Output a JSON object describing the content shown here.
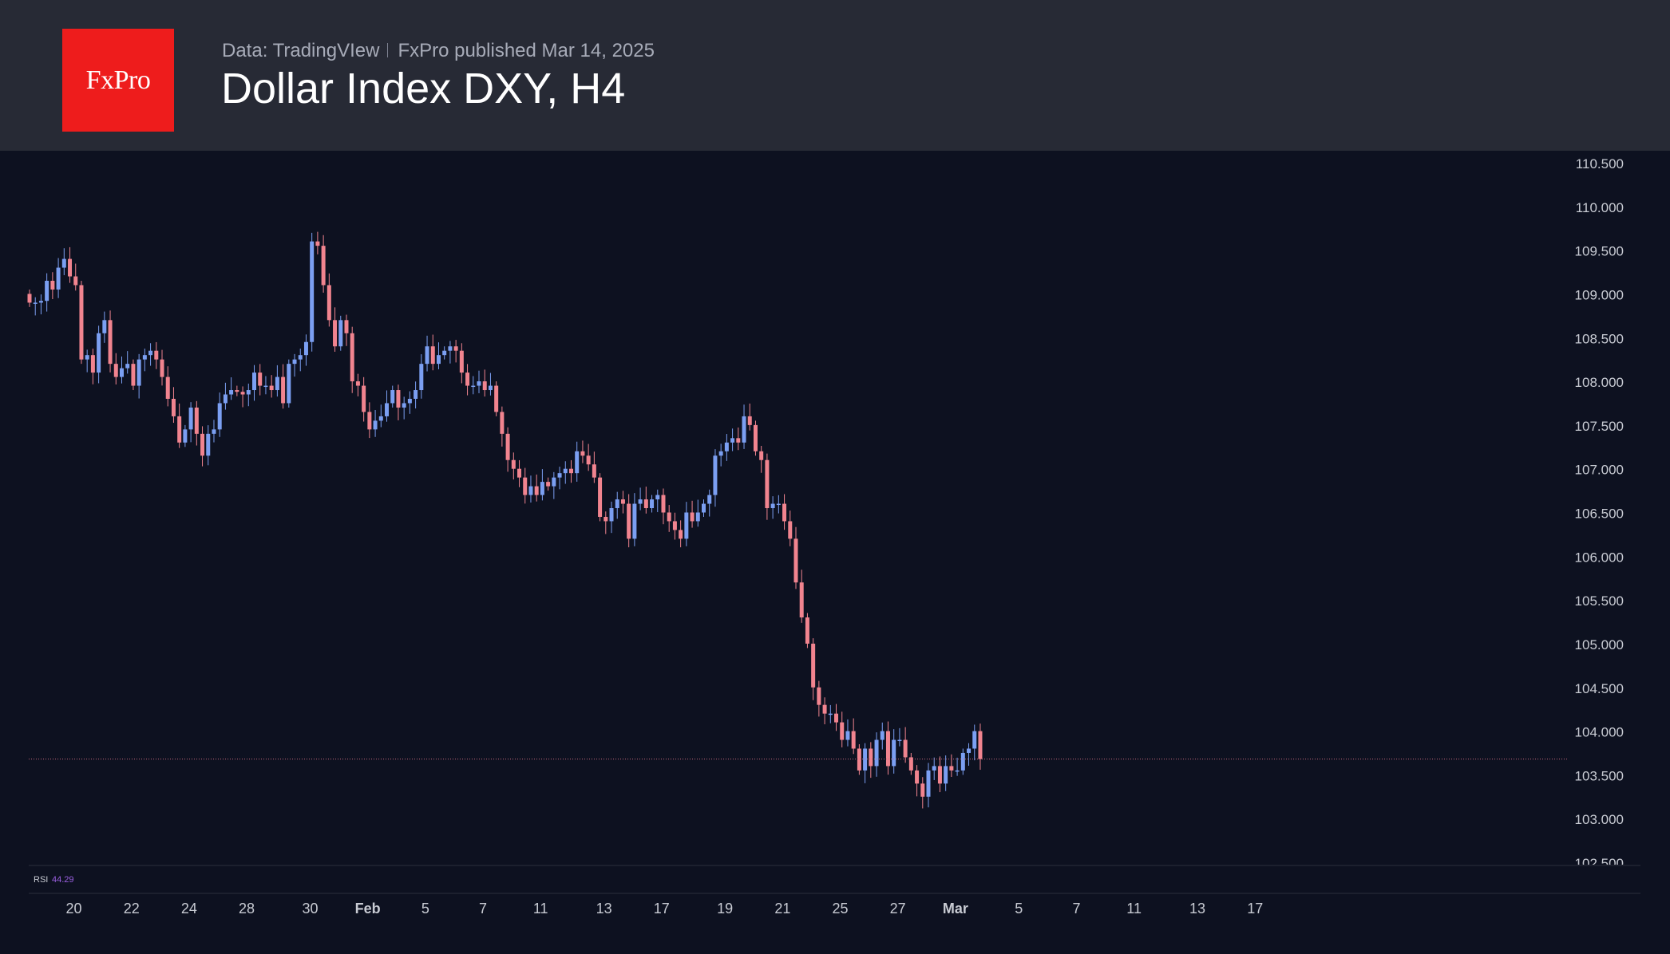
{
  "header": {
    "logo_text": "FxPro",
    "data_source": "Data: TradingVIew",
    "published": "FxPro published Mar 14, 2025",
    "title": "Dollar Index DXY, H4"
  },
  "colors": {
    "header_bg": "#272a35",
    "chart_bg": "#0d1120",
    "logo_bg": "#ee1c1c",
    "bull": "#7b9ff2",
    "bear": "#f1848f",
    "axis_text": "#c8cbd3",
    "rsi_label": "#c8cbd3",
    "rsi_value": "#9a5fe0",
    "price_line": "#c8687c"
  },
  "indicator": {
    "label": "RSI",
    "value": "44.29"
  },
  "chart_data": {
    "type": "candlestick",
    "title": "Dollar Index DXY, H4",
    "ylim": [
      102.5,
      110.5
    ],
    "last_price": 103.68,
    "y_ticks": [
      "110.500",
      "110.000",
      "109.500",
      "109.000",
      "108.500",
      "108.000",
      "107.500",
      "107.000",
      "106.500",
      "106.000",
      "105.500",
      "105.000",
      "104.500",
      "104.000",
      "103.500",
      "103.000",
      "102.500"
    ],
    "x_ticks": [
      {
        "label": "20",
        "i": 7
      },
      {
        "label": "22",
        "i": 17
      },
      {
        "label": "24",
        "i": 27
      },
      {
        "label": "28",
        "i": 37
      },
      {
        "label": "30",
        "i": 48
      },
      {
        "label": "Feb",
        "i": 58
      },
      {
        "label": "5",
        "i": 68
      },
      {
        "label": "7",
        "i": 78
      },
      {
        "label": "11",
        "i": 88
      },
      {
        "label": "13",
        "i": 99
      },
      {
        "label": "17",
        "i": 109
      },
      {
        "label": "19",
        "i": 120
      },
      {
        "label": "21",
        "i": 130
      },
      {
        "label": "25",
        "i": 140
      },
      {
        "label": "27",
        "i": 150
      },
      {
        "label": "Mar",
        "i": 160
      },
      {
        "label": "5",
        "i": 171
      },
      {
        "label": "7",
        "i": 181
      },
      {
        "label": "11",
        "i": 191
      },
      {
        "label": "13",
        "i": 202
      },
      {
        "label": "17",
        "i": 212
      }
    ],
    "close": [
      108.9,
      108.9,
      108.92,
      109.15,
      109.05,
      109.3,
      109.4,
      109.2,
      109.1,
      108.25,
      108.3,
      108.1,
      108.55,
      108.7,
      108.2,
      108.05,
      108.15,
      108.2,
      107.95,
      108.25,
      108.3,
      108.35,
      108.25,
      108.05,
      107.8,
      107.6,
      107.3,
      107.45,
      107.7,
      107.4,
      107.15,
      107.4,
      107.45,
      107.75,
      107.85,
      107.9,
      107.88,
      107.85,
      107.9,
      108.1,
      107.95,
      107.95,
      107.9,
      108.05,
      107.75,
      108.2,
      108.25,
      108.3,
      108.45,
      109.6,
      109.55,
      109.1,
      108.7,
      108.4,
      108.7,
      108.55,
      108.0,
      107.95,
      107.65,
      107.45,
      107.55,
      107.6,
      107.75,
      107.9,
      107.7,
      107.75,
      107.8,
      107.9,
      108.2,
      108.4,
      108.2,
      108.3,
      108.35,
      108.4,
      108.35,
      108.1,
      107.95,
      107.95,
      108.0,
      107.9,
      107.95,
      107.65,
      107.4,
      107.1,
      107.0,
      106.9,
      106.7,
      106.8,
      106.7,
      106.85,
      106.8,
      106.9,
      106.95,
      107.0,
      106.95,
      107.2,
      107.15,
      107.05,
      106.9,
      106.45,
      106.4,
      106.55,
      106.65,
      106.6,
      106.2,
      106.6,
      106.65,
      106.55,
      106.65,
      106.7,
      106.5,
      106.4,
      106.3,
      106.2,
      106.5,
      106.4,
      106.5,
      106.6,
      106.7,
      107.15,
      107.2,
      107.3,
      107.35,
      107.3,
      107.6,
      107.5,
      107.2,
      107.1,
      106.55,
      106.6,
      106.6,
      106.4,
      106.2,
      105.7,
      105.3,
      105.0,
      104.5,
      104.3,
      104.2,
      104.2,
      104.1,
      103.9,
      104.0,
      103.8,
      103.55,
      103.8,
      103.6,
      103.9,
      104.0,
      103.6,
      103.9,
      103.9,
      103.7,
      103.55,
      103.4,
      103.25,
      103.55,
      103.6,
      103.4,
      103.6,
      103.55,
      103.55,
      103.75,
      103.8,
      104.0,
      103.68
    ]
  }
}
